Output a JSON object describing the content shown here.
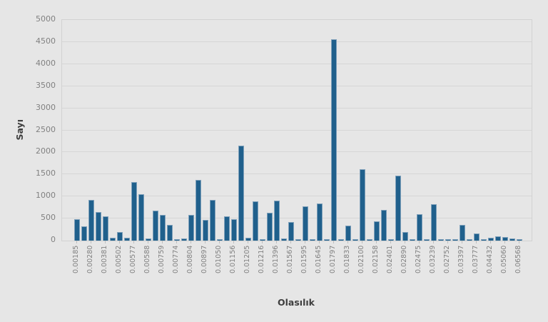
{
  "chart_data": {
    "type": "bar",
    "title": "",
    "xlabel": "Olasılık",
    "ylabel": "Sayı",
    "ylim": [
      0,
      5000
    ],
    "y_ticks": [
      0,
      500,
      1000,
      1500,
      2000,
      2500,
      3000,
      3500,
      4000,
      4500,
      5000
    ],
    "grid": true,
    "legend": false,
    "background_color": "#e6e6e6",
    "bar_color": "#20608c",
    "x_tick_labels": [
      "0.00185",
      "0.00280",
      "0.00381",
      "0.00502",
      "0.00577",
      "0.00588",
      "0.00759",
      "0.00774",
      "0.00804",
      "0.00897",
      "0.01050",
      "0.01156",
      "0.01205",
      "0.01216",
      "0.01396",
      "0.01567",
      "0.01595",
      "0.01645",
      "0.01797",
      "0.01833",
      "0.02100",
      "0.02158",
      "0.02401",
      "0.02890",
      "0.02475",
      "0.03239",
      "0.02752",
      "0.03397",
      "0.03777",
      "0.04432",
      "0.05060",
      "0.06568"
    ],
    "bars": [
      {
        "label": "0.00185",
        "value": 480
      },
      {
        "label": "",
        "value": 330
      },
      {
        "label": "0.00280",
        "value": 920
      },
      {
        "label": "",
        "value": 640
      },
      {
        "label": "0.00381",
        "value": 550
      },
      {
        "label": "",
        "value": 70
      },
      {
        "label": "0.00502",
        "value": 190
      },
      {
        "label": "",
        "value": 60
      },
      {
        "label": "0.00577",
        "value": 1320
      },
      {
        "label": "",
        "value": 1050
      },
      {
        "label": "0.00588",
        "value": 55
      },
      {
        "label": "",
        "value": 680
      },
      {
        "label": "0.00759",
        "value": 590
      },
      {
        "label": "",
        "value": 350
      },
      {
        "label": "0.00774",
        "value": 40
      },
      {
        "label": "",
        "value": 45
      },
      {
        "label": "0.00804",
        "value": 585
      },
      {
        "label": "",
        "value": 1380
      },
      {
        "label": "0.00897",
        "value": 465
      },
      {
        "label": "",
        "value": 915
      },
      {
        "label": "0.01050",
        "value": 40
      },
      {
        "label": "",
        "value": 550
      },
      {
        "label": "0.01156",
        "value": 480
      },
      {
        "label": "",
        "value": 2150
      },
      {
        "label": "0.01205",
        "value": 70
      },
      {
        "label": "",
        "value": 895
      },
      {
        "label": "0.01216",
        "value": 40
      },
      {
        "label": "",
        "value": 625
      },
      {
        "label": "0.01396",
        "value": 900
      },
      {
        "label": "",
        "value": 45
      },
      {
        "label": "0.01567",
        "value": 420
      },
      {
        "label": "",
        "value": 30
      },
      {
        "label": "0.01595",
        "value": 780
      },
      {
        "label": "",
        "value": 30
      },
      {
        "label": "0.01645",
        "value": 845
      },
      {
        "label": "",
        "value": 30
      },
      {
        "label": "0.01797",
        "value": 4570
      },
      {
        "label": "",
        "value": 25
      },
      {
        "label": "0.01833",
        "value": 340
      },
      {
        "label": "",
        "value": 25
      },
      {
        "label": "0.02100",
        "value": 1620
      },
      {
        "label": "",
        "value": 25
      },
      {
        "label": "0.02158",
        "value": 430
      },
      {
        "label": "",
        "value": 700
      },
      {
        "label": "0.02401",
        "value": 35
      },
      {
        "label": "",
        "value": 1470
      },
      {
        "label": "0.02890",
        "value": 200
      },
      {
        "label": "",
        "value": 30
      },
      {
        "label": "0.02475",
        "value": 600
      },
      {
        "label": "",
        "value": 40
      },
      {
        "label": "0.03239",
        "value": 820
      },
      {
        "label": "",
        "value": 30
      },
      {
        "label": "0.02752",
        "value": 35
      },
      {
        "label": "",
        "value": 30
      },
      {
        "label": "0.03397",
        "value": 350
      },
      {
        "label": "",
        "value": 25
      },
      {
        "label": "0.03777",
        "value": 160
      },
      {
        "label": "",
        "value": 40
      },
      {
        "label": "0.04432",
        "value": 60
      },
      {
        "label": "",
        "value": 90
      },
      {
        "label": "0.05060",
        "value": 75
      },
      {
        "label": "",
        "value": 50
      },
      {
        "label": "0.06568",
        "value": 40
      }
    ]
  }
}
